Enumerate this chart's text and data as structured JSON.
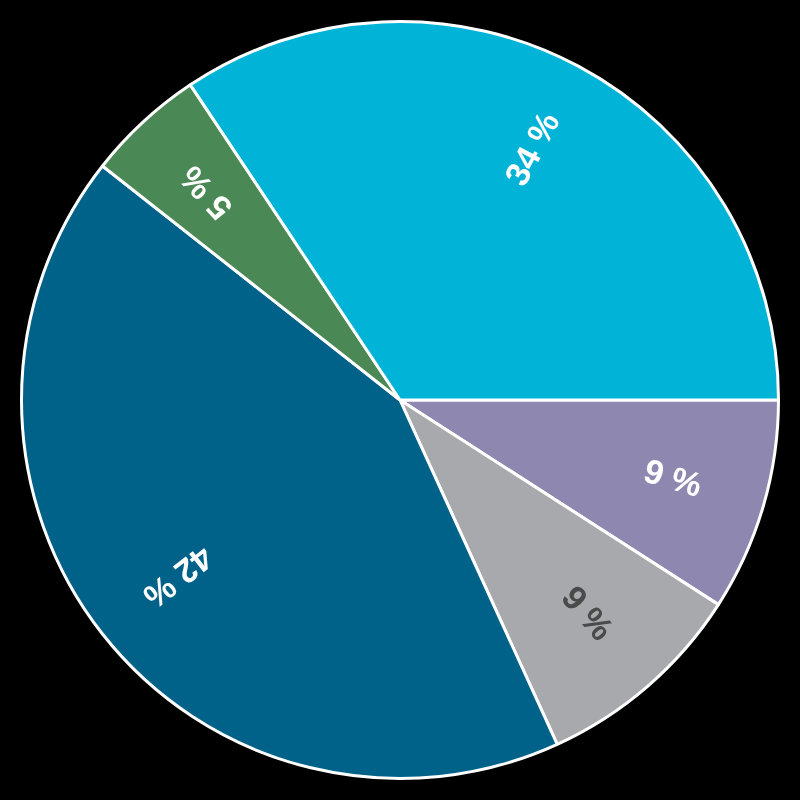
{
  "chart_data": {
    "type": "pie",
    "categories": [
      null,
      null,
      null,
      null,
      null
    ],
    "values": [
      9,
      9,
      42,
      5,
      34
    ],
    "colors": [
      "#8e88b1",
      "#a7a9ac",
      "#006189",
      "#4a8955",
      "#00b3d7"
    ],
    "value_labels": [
      "9 %",
      "9 %",
      "42 %",
      "5 %",
      "34 %"
    ]
  }
}
